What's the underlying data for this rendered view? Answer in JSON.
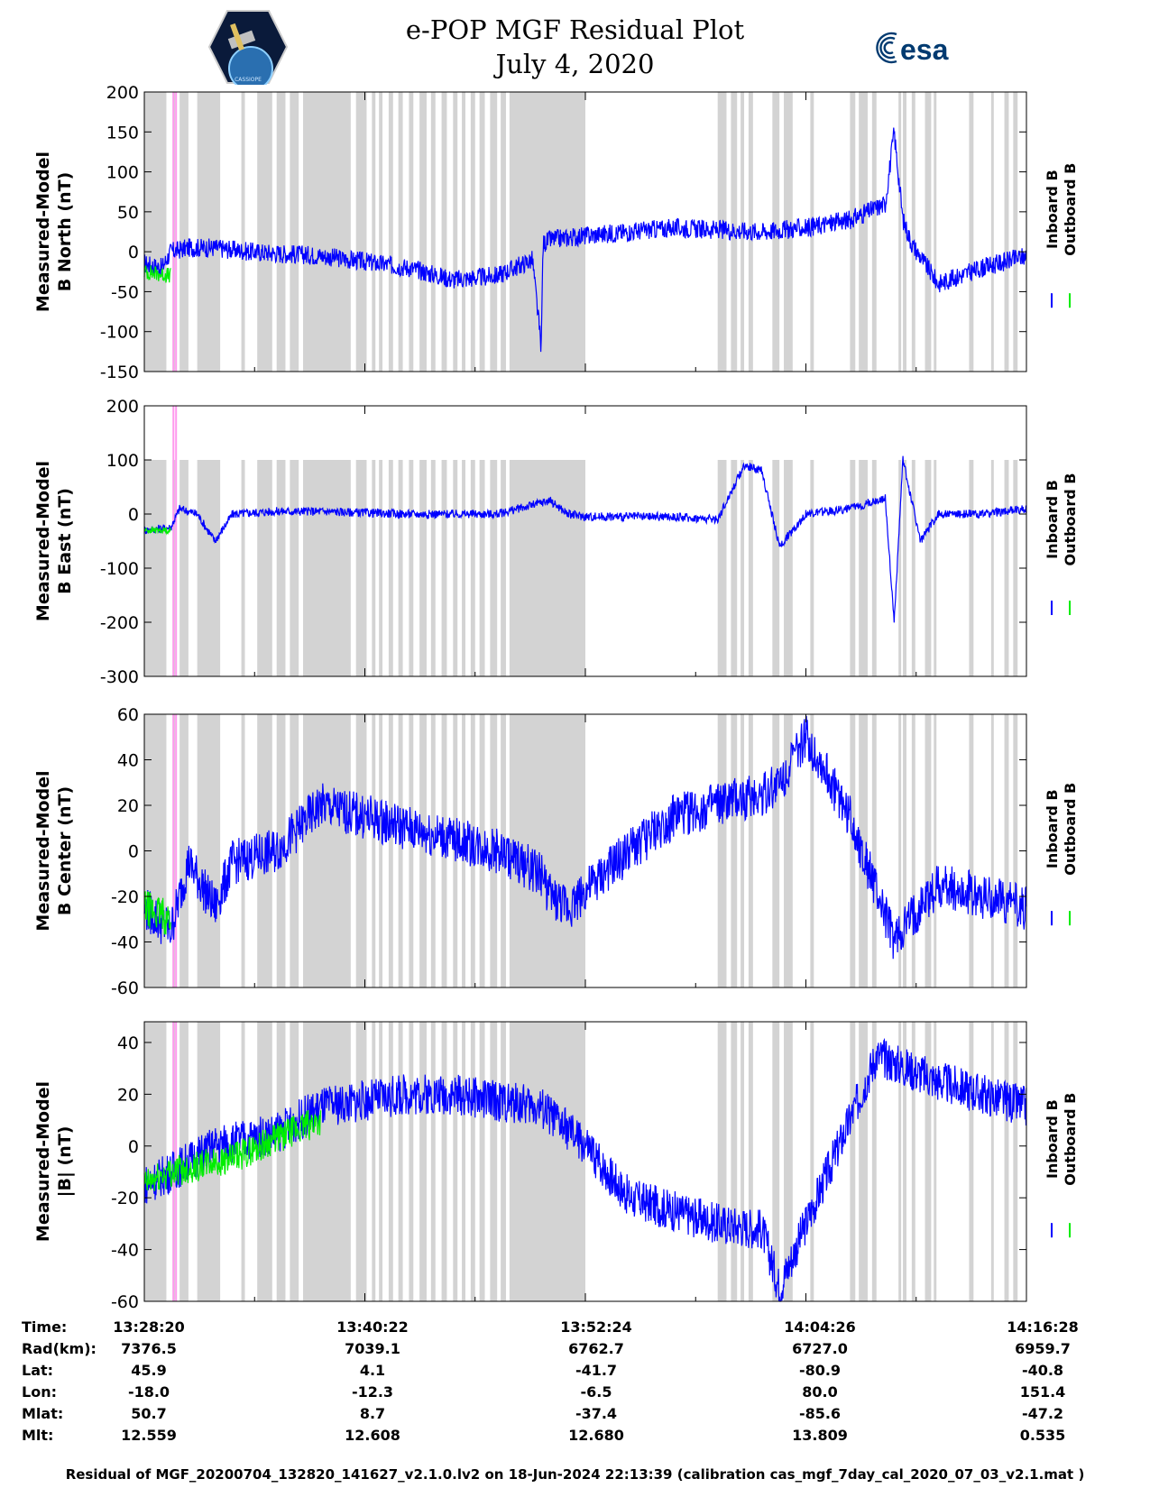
{
  "header": {
    "title_line1": "e-POP MGF Residual Plot",
    "title_line2": "July 4, 2020",
    "logo_left_text": "CASSIOPE",
    "logo_right_text": "esa"
  },
  "colors": {
    "inboard": "#0000ff",
    "outboard": "#00ee00",
    "shade": "#d3d3d3",
    "marker": "#ff99ee"
  },
  "legend": {
    "inboard": "Inboard B",
    "outboard": "Outboard B"
  },
  "chart_data": [
    {
      "type": "line",
      "ylabel_line1": "Measured-Model",
      "ylabel_line2": "B North (nT)",
      "ylim": [
        -150,
        200
      ],
      "yticks": [
        200,
        150,
        100,
        50,
        0,
        -50,
        -100,
        -150
      ],
      "series": [
        {
          "name": "Inboard B",
          "x": [
            0,
            0.02,
            0.03,
            0.05,
            0.08,
            0.12,
            0.2,
            0.3,
            0.35,
            0.4,
            0.44,
            0.45,
            0.452,
            0.46,
            0.5,
            0.6,
            0.7,
            0.75,
            0.8,
            0.84,
            0.85,
            0.86,
            0.87,
            0.9,
            0.95,
            1.0
          ],
          "values": [
            -15,
            -20,
            0,
            5,
            5,
            0,
            -5,
            -20,
            -35,
            -30,
            -10,
            -120,
            10,
            15,
            20,
            30,
            25,
            30,
            40,
            60,
            150,
            40,
            10,
            -40,
            -20,
            -5
          ],
          "noise": 12
        },
        {
          "name": "Outboard B",
          "x": [
            0,
            0.03
          ],
          "values": [
            -25,
            -30
          ],
          "noise": 10
        }
      ]
    },
    {
      "type": "line",
      "ylabel_line1": "Measured-Model",
      "ylabel_line2": "B East (nT)",
      "ylim": [
        -300,
        200
      ],
      "yticks": [
        200,
        100,
        0,
        -100,
        -200,
        -300
      ],
      "series": [
        {
          "name": "Inboard B",
          "x": [
            0,
            0.03,
            0.04,
            0.06,
            0.08,
            0.1,
            0.15,
            0.2,
            0.3,
            0.4,
            0.46,
            0.48,
            0.5,
            0.6,
            0.65,
            0.68,
            0.7,
            0.72,
            0.75,
            0.8,
            0.84,
            0.85,
            0.86,
            0.88,
            0.9,
            0.95,
            1.0
          ],
          "values": [
            -30,
            -25,
            10,
            0,
            -50,
            0,
            5,
            5,
            0,
            0,
            25,
            0,
            -5,
            -5,
            -10,
            90,
            80,
            -60,
            0,
            10,
            30,
            -200,
            100,
            -50,
            0,
            0,
            10
          ],
          "noise": 8
        },
        {
          "name": "Outboard B",
          "x": [
            0,
            0.03
          ],
          "values": [
            -30,
            -30
          ],
          "noise": 6
        }
      ]
    },
    {
      "type": "line",
      "ylabel_line1": "Measured-Model",
      "ylabel_line2": "B Center (nT)",
      "ylim": [
        -60,
        60
      ],
      "yticks": [
        60,
        40,
        20,
        0,
        -20,
        -40,
        -60
      ],
      "series": [
        {
          "name": "Inboard B",
          "x": [
            0,
            0.03,
            0.05,
            0.08,
            0.1,
            0.15,
            0.2,
            0.25,
            0.3,
            0.4,
            0.45,
            0.46,
            0.48,
            0.55,
            0.6,
            0.65,
            0.7,
            0.72,
            0.75,
            0.8,
            0.85,
            0.9,
            1.0
          ],
          "values": [
            -25,
            -35,
            -5,
            -25,
            -5,
            0,
            20,
            15,
            10,
            0,
            -10,
            -20,
            -25,
            0,
            15,
            20,
            25,
            30,
            50,
            15,
            -40,
            -15,
            -25
          ],
          "noise": 10
        },
        {
          "name": "Outboard B",
          "x": [
            0,
            0.03
          ],
          "values": [
            -25,
            -30
          ],
          "noise": 8
        }
      ]
    },
    {
      "type": "line",
      "ylabel_line1": "Measured-Model",
      "ylabel_line2": "|B| (nT)",
      "ylim": [
        -60,
        48
      ],
      "yticks": [
        40,
        20,
        0,
        -20,
        -40,
        -60
      ],
      "series": [
        {
          "name": "Inboard B",
          "x": [
            0,
            0.03,
            0.08,
            0.15,
            0.2,
            0.3,
            0.35,
            0.45,
            0.5,
            0.55,
            0.6,
            0.65,
            0.7,
            0.72,
            0.75,
            0.8,
            0.83,
            0.9,
            1.0
          ],
          "values": [
            -15,
            -10,
            0,
            5,
            15,
            20,
            20,
            15,
            0,
            -20,
            -25,
            -30,
            -32,
            -55,
            -30,
            10,
            35,
            25,
            15
          ],
          "noise": 8
        },
        {
          "name": "Outboard B",
          "x": [
            0,
            0.03,
            0.1,
            0.15,
            0.2
          ],
          "values": [
            -15,
            -10,
            -5,
            3,
            10
          ],
          "noise": 6
        }
      ]
    }
  ],
  "shading": {
    "bands": [
      [
        0,
        0.025
      ],
      [
        0.032,
        0.035
      ],
      [
        0.04,
        0.05
      ],
      [
        0.06,
        0.086
      ],
      [
        0.11,
        0.114
      ],
      [
        0.128,
        0.145
      ],
      [
        0.15,
        0.16
      ],
      [
        0.165,
        0.175
      ],
      [
        0.18,
        0.234
      ],
      [
        0.24,
        0.252
      ],
      [
        0.258,
        0.262
      ],
      [
        0.266,
        0.27
      ],
      [
        0.277,
        0.282
      ],
      [
        0.288,
        0.293
      ],
      [
        0.3,
        0.305
      ],
      [
        0.312,
        0.32
      ],
      [
        0.325,
        0.33
      ],
      [
        0.337,
        0.343
      ],
      [
        0.35,
        0.355
      ],
      [
        0.36,
        0.364
      ],
      [
        0.37,
        0.375
      ],
      [
        0.38,
        0.386
      ],
      [
        0.392,
        0.4
      ],
      [
        0.404,
        0.41
      ],
      [
        0.414,
        0.5
      ],
      [
        0.65,
        0.66
      ],
      [
        0.665,
        0.672
      ],
      [
        0.676,
        0.68
      ],
      [
        0.685,
        0.69
      ],
      [
        0.712,
        0.72
      ],
      [
        0.725,
        0.735
      ],
      [
        0.755,
        0.759
      ],
      [
        0.8,
        0.806
      ],
      [
        0.81,
        0.82
      ],
      [
        0.825,
        0.83
      ],
      [
        0.855,
        0.858
      ],
      [
        0.86,
        0.864
      ],
      [
        0.87,
        0.874
      ],
      [
        0.885,
        0.892
      ],
      [
        0.895,
        0.898
      ],
      [
        0.935,
        0.94
      ],
      [
        0.96,
        0.963
      ],
      [
        0.975,
        0.98
      ],
      [
        0.985,
        0.99
      ]
    ],
    "markers": [
      0.033,
      0.036
    ]
  },
  "x_axis": {
    "tick_fracs": [
      0.0,
      0.25,
      0.5,
      0.75,
      1.0
    ],
    "minor_fracs": [
      0.125,
      0.375,
      0.625,
      0.875
    ]
  },
  "info_table": {
    "rows": [
      {
        "label": "Time:",
        "values": [
          "13:28:20",
          "13:40:22",
          "13:52:24",
          "14:04:26",
          "14:16:28"
        ]
      },
      {
        "label": "Rad(km):",
        "values": [
          "7376.5",
          "7039.1",
          "6762.7",
          "6727.0",
          "6959.7"
        ]
      },
      {
        "label": "Lat:",
        "values": [
          "45.9",
          "4.1",
          "-41.7",
          "-80.9",
          "-40.8"
        ]
      },
      {
        "label": "Lon:",
        "values": [
          "-18.0",
          "-12.3",
          "-6.5",
          "80.0",
          "151.4"
        ]
      },
      {
        "label": "Mlat:",
        "values": [
          "50.7",
          "8.7",
          "-37.4",
          "-85.6",
          "-47.2"
        ]
      },
      {
        "label": "Mlt:",
        "values": [
          "12.559",
          "12.608",
          "12.680",
          "13.809",
          "0.535"
        ]
      }
    ]
  },
  "footer": "Residual of MGF_20200704_132820_141627_v2.1.0.lv2 on 18-Jun-2024 22:13:39 (calibration cas_mgf_7day_cal_2020_07_03_v2.1.mat )"
}
